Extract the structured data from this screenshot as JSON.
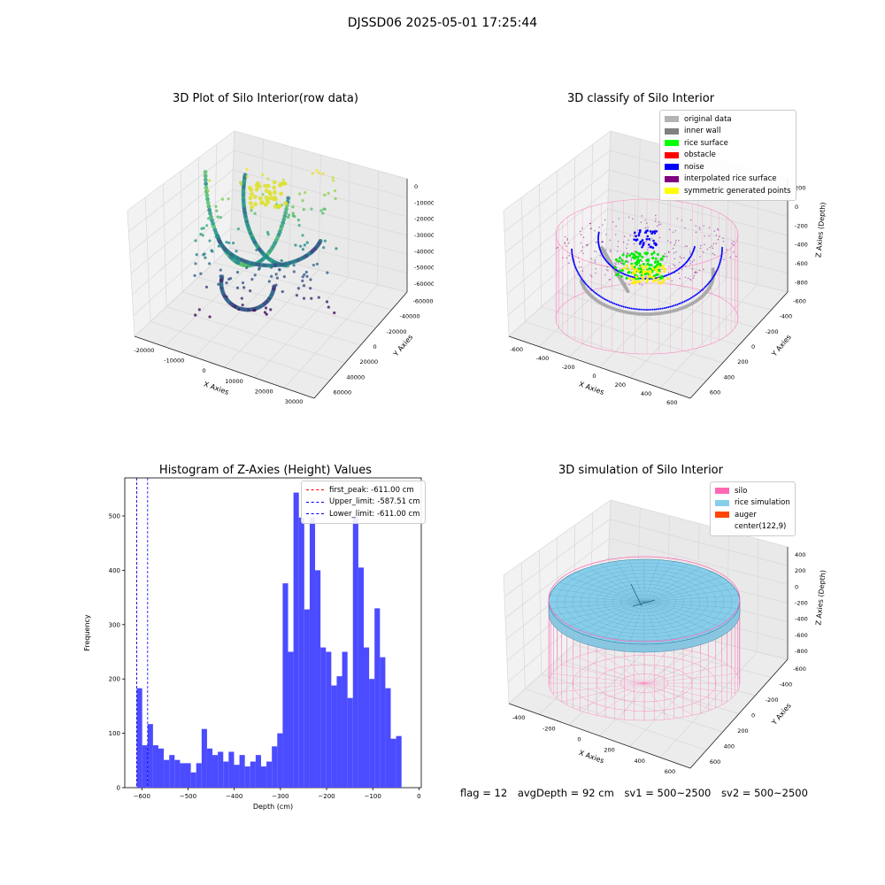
{
  "figure_title": "DJSSD06 2025-05-01 17:25:44",
  "colors": {
    "pink": "#ff69b4",
    "blue": "#0000ff",
    "red": "#ff0000",
    "hist": "#4b4bff",
    "rice": "#87ceeb",
    "gray": "#b4b4b4"
  },
  "chart_data": [
    {
      "type": "scatter",
      "subtype": "3d",
      "title": "3D Plot of Silo Interior(row data)",
      "xlabel": "X Axies",
      "ylabel": "Y Axies",
      "zlabel": "Z Axies (Depth)",
      "x_ticks": [
        "-20000",
        "-10000",
        "0",
        "10000",
        "20000",
        "30000"
      ],
      "y_ticks": [
        "-60000",
        "-40000",
        "-20000",
        "0",
        "20000",
        "40000",
        "60000"
      ],
      "z_ticks": [
        "0",
        "-10000",
        "-20000",
        "-30000",
        "-40000",
        "-50000",
        "-60000"
      ],
      "colormap": "viridis"
    },
    {
      "type": "scatter",
      "subtype": "3d",
      "title": "3D classify of Silo Interior",
      "xlabel": "X Axies",
      "ylabel": "Y Axies",
      "zlabel": "Z Axies (Depth)",
      "x_ticks": [
        "-600",
        "-400",
        "-200",
        "0",
        "200",
        "400",
        "600"
      ],
      "y_ticks": [
        "-600",
        "-400",
        "-200",
        "0",
        "200",
        "400",
        "600"
      ],
      "z_ticks": [
        "200",
        "0",
        "-200",
        "-400",
        "-600",
        "-800"
      ],
      "legend": [
        {
          "label": "original data",
          "color": "#b4b4b4"
        },
        {
          "label": "inner wall",
          "color": "#808080"
        },
        {
          "label": "rice surface",
          "color": "#00ff00"
        },
        {
          "label": "obstacle",
          "color": "#ff0000"
        },
        {
          "label": "noise",
          "color": "#0000ff"
        },
        {
          "label": "interpolated rice surface",
          "color": "#800080"
        },
        {
          "label": "symmetric generated points",
          "color": "#ffff00"
        }
      ]
    },
    {
      "type": "bar",
      "subtype": "histogram",
      "title": "Histogram of Z-Axies (Height) Values",
      "xlabel": "Depth (cm)",
      "ylabel": "Frequency",
      "xlim": [
        -637,
        5
      ],
      "ylim": [
        0,
        570
      ],
      "x_ticks": [
        -600,
        -500,
        -400,
        -300,
        -200,
        -100,
        0
      ],
      "y_ticks": [
        0,
        100,
        200,
        300,
        400,
        500
      ],
      "bin_start": -611,
      "bin_width": 11.7,
      "values": [
        183,
        78,
        117,
        78,
        72,
        51,
        60,
        51,
        45,
        45,
        28,
        45,
        108,
        72,
        60,
        66,
        48,
        66,
        42,
        60,
        39,
        48,
        60,
        39,
        48,
        76,
        100,
        376,
        250,
        543,
        497,
        328,
        497,
        400,
        258,
        250,
        188,
        205,
        250,
        165,
        497,
        405,
        258,
        200,
        330,
        240,
        183,
        90,
        95
      ],
      "lines": [
        {
          "label": "first_peak: -611.00 cm",
          "x": -611,
          "color": "#ff0000"
        },
        {
          "label": "Upper_limit: -587.51 cm",
          "x": -587.51,
          "color": "#0000ff"
        },
        {
          "label": "Lower_limit: -611.00 cm",
          "x": -611,
          "color": "#0000ff"
        }
      ]
    },
    {
      "type": "area",
      "subtype": "3d-surface",
      "title": "3D simulation of Silo Interior",
      "xlabel": "X Axies",
      "ylabel": "Y Axies",
      "zlabel": "Z Axies (Depth)",
      "x_ticks": [
        "-400",
        "-200",
        "0",
        "200",
        "400",
        "600"
      ],
      "y_ticks": [
        "-600",
        "-400",
        "-200",
        "0",
        "200",
        "400",
        "600"
      ],
      "z_ticks": [
        "400",
        "200",
        "0",
        "-200",
        "-400",
        "-600",
        "-800"
      ],
      "legend": [
        {
          "label": "silo",
          "color": "#ff69b4"
        },
        {
          "label": "rice simulation",
          "color": "#87ceeb"
        },
        {
          "label": "auger",
          "color": "#ff4500"
        },
        {
          "label": "center(122,9)",
          "color": ""
        }
      ]
    }
  ],
  "footer": {
    "flag": "flag = 12",
    "avg_depth": "avgDepth = 92 cm",
    "sv1": "sv1 = 500~2500",
    "sv2": "sv2 = 500~2500"
  }
}
